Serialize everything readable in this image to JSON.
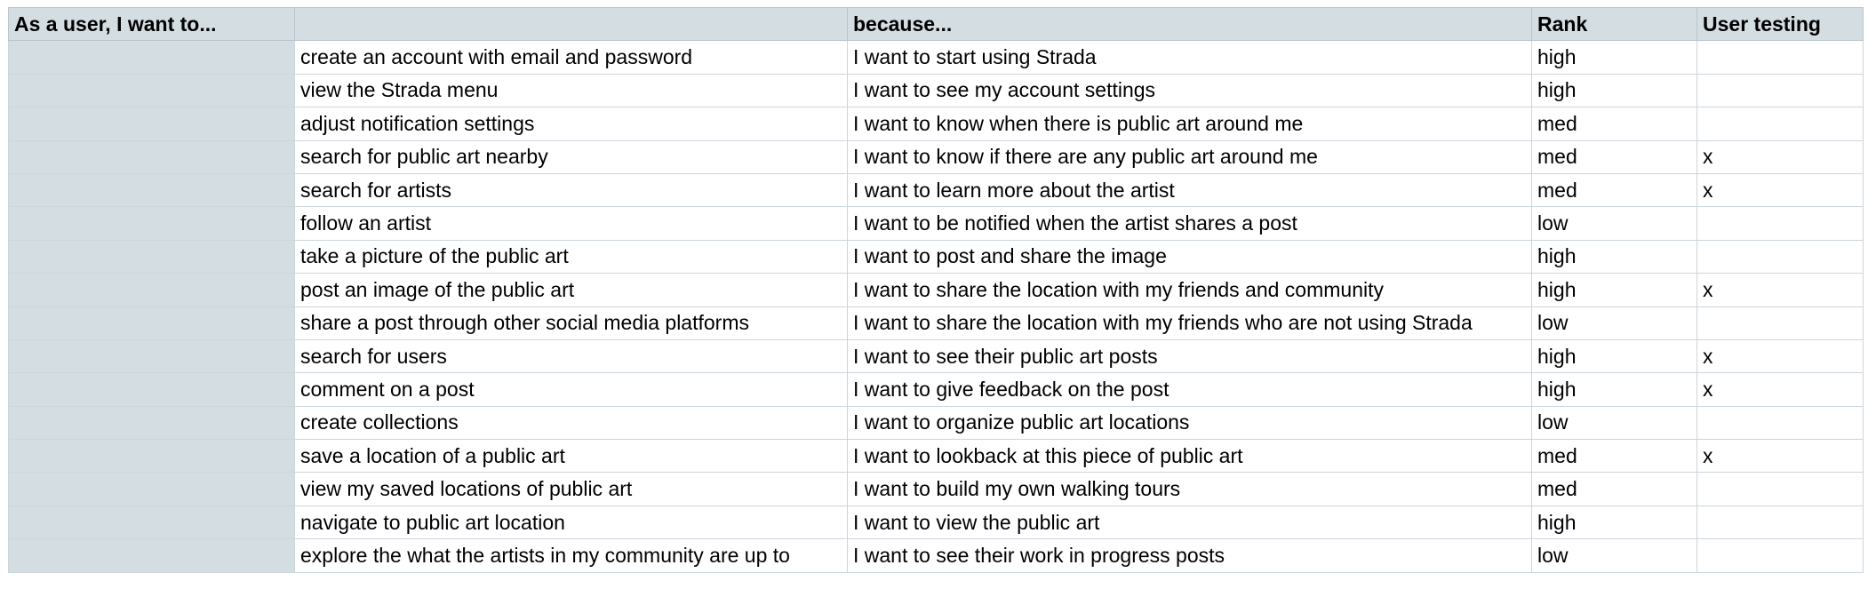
{
  "headers": [
    "As a user, I want to...",
    "",
    "because...",
    "Rank",
    "User testing"
  ],
  "rows": [
    {
      "want": "create an account with email and password",
      "because": "I want to start using Strada",
      "rank": "high",
      "testing": ""
    },
    {
      "want": "view the Strada menu",
      "because": "I want to see my account settings",
      "rank": "high",
      "testing": ""
    },
    {
      "want": "adjust notification settings",
      "because": "I want to know when there is public art around me",
      "rank": "med",
      "testing": ""
    },
    {
      "want": "search for public art nearby",
      "because": "I want to know if there are any public art around me",
      "rank": "med",
      "testing": "x"
    },
    {
      "want": "search for artists",
      "because": "I want to learn more about the artist",
      "rank": "med",
      "testing": "x"
    },
    {
      "want": "follow an artist",
      "because": "I want to be notified when the artist shares a post",
      "rank": "low",
      "testing": ""
    },
    {
      "want": "take a picture of the public art",
      "because": "I want to post and share the image",
      "rank": "high",
      "testing": ""
    },
    {
      "want": "post an image of the public art",
      "because": "I want to share the location with my friends and community",
      "rank": "high",
      "testing": "x"
    },
    {
      "want": "share a post through other social media platforms",
      "because": "I want to share the location with my friends who are not using Strada",
      "rank": "low",
      "testing": ""
    },
    {
      "want": "search for users",
      "because": "I want to see their public art posts",
      "rank": "high",
      "testing": "x"
    },
    {
      "want": "comment on a post",
      "because": "I want to give feedback on the post",
      "rank": "high",
      "testing": "x"
    },
    {
      "want": "create collections",
      "because": "I want to organize public art locations",
      "rank": "low",
      "testing": ""
    },
    {
      "want": "save a location of a public art",
      "because": "I want to lookback at this piece of public art",
      "rank": "med",
      "testing": "x"
    },
    {
      "want": "view my saved locations of public art",
      "because": "I want to build my own walking tours",
      "rank": "med",
      "testing": ""
    },
    {
      "want": "navigate to public art location",
      "because": "I want to view the public art",
      "rank": "high",
      "testing": ""
    },
    {
      "want": "explore the what the artists in my community are up to",
      "because": "I want to see their work in progress posts",
      "rank": "low",
      "testing": ""
    }
  ]
}
